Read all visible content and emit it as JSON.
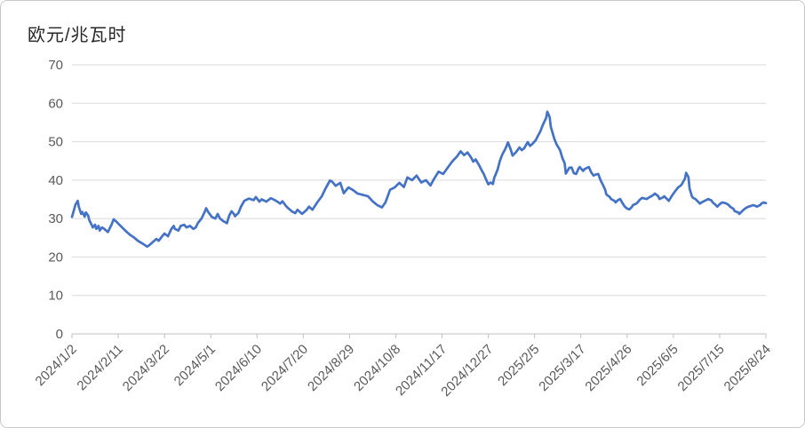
{
  "chart_data": {
    "type": "line",
    "title": "欧元/兆瓦时",
    "x_start_date": "2024/1/2",
    "x_end_date": "2025/8/24",
    "x_span_days": 600,
    "x_tick_interval_days": 40,
    "x_tick_labels": [
      "2024/1/2",
      "2024/2/11",
      "2024/3/22",
      "2024/5/1",
      "2024/6/10",
      "2024/7/20",
      "2024/8/29",
      "2024/10/8",
      "2024/11/17",
      "2024/12/27",
      "2025/2/5",
      "2025/3/17",
      "2025/4/26",
      "2025/6/5",
      "2025/7/15",
      "2025/8/24"
    ],
    "y_ticks": [
      0,
      10,
      20,
      30,
      40,
      50,
      60,
      70
    ],
    "ylim": [
      0,
      70
    ],
    "grid": "horizontal",
    "legend": "none",
    "colors": {
      "line": "#4472C4",
      "gridline": "#D9D9D9",
      "axis": "#BFBFBF",
      "tick_label": "#595959",
      "title": "#262626",
      "background": "#FFFFFF",
      "border": "#C9C9C9"
    },
    "series": [
      {
        "points_format": "[days_since_2024/1/2, EUR_per_MWh]",
        "points": [
          [
            0,
            30.4
          ],
          [
            2,
            32.5
          ],
          [
            3,
            33.6
          ],
          [
            5,
            34.6
          ],
          [
            6,
            33.0
          ],
          [
            8,
            31.2
          ],
          [
            9,
            31.7
          ],
          [
            11,
            30.5
          ],
          [
            12,
            31.6
          ],
          [
            14,
            30.8
          ],
          [
            15,
            29.6
          ],
          [
            17,
            28.4
          ],
          [
            18,
            27.7
          ],
          [
            20,
            28.4
          ],
          [
            21,
            27.3
          ],
          [
            23,
            28.1
          ],
          [
            24,
            26.9
          ],
          [
            26,
            27.7
          ],
          [
            28,
            27.3
          ],
          [
            31,
            26.5
          ],
          [
            34,
            28.3
          ],
          [
            36,
            29.8
          ],
          [
            38,
            29.3
          ],
          [
            42,
            28.1
          ],
          [
            46,
            26.9
          ],
          [
            50,
            25.8
          ],
          [
            54,
            25.0
          ],
          [
            57,
            24.2
          ],
          [
            61,
            23.5
          ],
          [
            65,
            22.7
          ],
          [
            67,
            23.1
          ],
          [
            70,
            23.9
          ],
          [
            73,
            24.7
          ],
          [
            75,
            24.2
          ],
          [
            78,
            25.4
          ],
          [
            80,
            26.1
          ],
          [
            83,
            25.4
          ],
          [
            86,
            27.3
          ],
          [
            88,
            28.1
          ],
          [
            89,
            27.3
          ],
          [
            92,
            26.9
          ],
          [
            94,
            28.1
          ],
          [
            97,
            28.4
          ],
          [
            99,
            27.7
          ],
          [
            102,
            28.1
          ],
          [
            105,
            27.3
          ],
          [
            107,
            27.7
          ],
          [
            109,
            28.9
          ],
          [
            112,
            30.0
          ],
          [
            115,
            31.9
          ],
          [
            116,
            32.7
          ],
          [
            118,
            31.6
          ],
          [
            121,
            30.4
          ],
          [
            124,
            30.0
          ],
          [
            126,
            31.2
          ],
          [
            128,
            30.0
          ],
          [
            131,
            29.3
          ],
          [
            134,
            28.8
          ],
          [
            136,
            30.8
          ],
          [
            138,
            31.9
          ],
          [
            140,
            31.2
          ],
          [
            141,
            30.6
          ],
          [
            144,
            31.5
          ],
          [
            146,
            33.0
          ],
          [
            149,
            34.6
          ],
          [
            153,
            35.2
          ],
          [
            157,
            34.8
          ],
          [
            159,
            35.6
          ],
          [
            162,
            34.4
          ],
          [
            164,
            35.0
          ],
          [
            168,
            34.4
          ],
          [
            172,
            35.3
          ],
          [
            176,
            34.7
          ],
          [
            180,
            33.9
          ],
          [
            182,
            34.5
          ],
          [
            185,
            33.3
          ],
          [
            187,
            32.7
          ],
          [
            190,
            31.9
          ],
          [
            193,
            31.4
          ],
          [
            195,
            32.3
          ],
          [
            199,
            31.2
          ],
          [
            203,
            32.3
          ],
          [
            205,
            33.1
          ],
          [
            208,
            32.3
          ],
          [
            212,
            34.2
          ],
          [
            216,
            35.8
          ],
          [
            219,
            37.7
          ],
          [
            223,
            39.9
          ],
          [
            225,
            39.6
          ],
          [
            228,
            38.5
          ],
          [
            232,
            39.3
          ],
          [
            235,
            36.6
          ],
          [
            239,
            38.1
          ],
          [
            243,
            37.4
          ],
          [
            247,
            36.5
          ],
          [
            251,
            36.2
          ],
          [
            256,
            35.8
          ],
          [
            260,
            34.5
          ],
          [
            264,
            33.5
          ],
          [
            268,
            32.9
          ],
          [
            271,
            34.2
          ],
          [
            275,
            37.5
          ],
          [
            279,
            38.1
          ],
          [
            283,
            39.3
          ],
          [
            287,
            38.2
          ],
          [
            290,
            40.7
          ],
          [
            294,
            40.0
          ],
          [
            298,
            41.2
          ],
          [
            302,
            39.4
          ],
          [
            306,
            40.0
          ],
          [
            310,
            38.6
          ],
          [
            313,
            40.3
          ],
          [
            317,
            42.2
          ],
          [
            321,
            41.6
          ],
          [
            325,
            43.3
          ],
          [
            329,
            44.9
          ],
          [
            333,
            46.2
          ],
          [
            336,
            47.5
          ],
          [
            339,
            46.5
          ],
          [
            342,
            47.2
          ],
          [
            345,
            45.9
          ],
          [
            347,
            44.8
          ],
          [
            349,
            45.4
          ],
          [
            352,
            43.9
          ],
          [
            354,
            42.7
          ],
          [
            356,
            41.6
          ],
          [
            358,
            40.2
          ],
          [
            360,
            38.9
          ],
          [
            362,
            39.4
          ],
          [
            364,
            39.0
          ],
          [
            365,
            40.5
          ],
          [
            368,
            42.7
          ],
          [
            370,
            45.0
          ],
          [
            372,
            46.6
          ],
          [
            375,
            48.3
          ],
          [
            377,
            49.8
          ],
          [
            379,
            48.3
          ],
          [
            381,
            46.4
          ],
          [
            384,
            47.3
          ],
          [
            387,
            48.5
          ],
          [
            389,
            47.8
          ],
          [
            391,
            48.3
          ],
          [
            394,
            49.9
          ],
          [
            396,
            48.9
          ],
          [
            398,
            49.4
          ],
          [
            401,
            50.4
          ],
          [
            403,
            51.6
          ],
          [
            405,
            52.7
          ],
          [
            407,
            54.3
          ],
          [
            410,
            56.2
          ],
          [
            411,
            57.8
          ],
          [
            413,
            56.4
          ],
          [
            414,
            53.9
          ],
          [
            417,
            50.8
          ],
          [
            419,
            49.3
          ],
          [
            422,
            47.8
          ],
          [
            424,
            45.8
          ],
          [
            426,
            44.4
          ],
          [
            427,
            41.7
          ],
          [
            430,
            43.2
          ],
          [
            432,
            43.3
          ],
          [
            434,
            41.8
          ],
          [
            436,
            41.6
          ],
          [
            438,
            43.0
          ],
          [
            439,
            43.4
          ],
          [
            442,
            42.4
          ],
          [
            443,
            42.8
          ],
          [
            446,
            43.3
          ],
          [
            447,
            43.4
          ],
          [
            449,
            42.0
          ],
          [
            451,
            41.2
          ],
          [
            453,
            41.5
          ],
          [
            455,
            41.6
          ],
          [
            457,
            40.0
          ],
          [
            459,
            38.8
          ],
          [
            461,
            37.5
          ],
          [
            462,
            36.3
          ],
          [
            465,
            35.6
          ],
          [
            466,
            35.1
          ],
          [
            469,
            34.6
          ],
          [
            470,
            34.2
          ],
          [
            472,
            34.8
          ],
          [
            474,
            35.1
          ],
          [
            476,
            34.0
          ],
          [
            478,
            33.1
          ],
          [
            480,
            32.6
          ],
          [
            482,
            32.4
          ],
          [
            484,
            33.0
          ],
          [
            485,
            33.5
          ],
          [
            488,
            33.9
          ],
          [
            489,
            34.2
          ],
          [
            491,
            34.9
          ],
          [
            493,
            35.4
          ],
          [
            495,
            35.2
          ],
          [
            497,
            35.1
          ],
          [
            499,
            35.5
          ],
          [
            501,
            35.8
          ],
          [
            503,
            36.2
          ],
          [
            504,
            36.5
          ],
          [
            507,
            35.8
          ],
          [
            508,
            35.1
          ],
          [
            511,
            35.5
          ],
          [
            512,
            35.8
          ],
          [
            514,
            35.2
          ],
          [
            516,
            34.6
          ],
          [
            518,
            35.6
          ],
          [
            520,
            36.5
          ],
          [
            522,
            37.3
          ],
          [
            524,
            38.1
          ],
          [
            526,
            38.5
          ],
          [
            527,
            38.8
          ],
          [
            530,
            40.4
          ],
          [
            531,
            41.9
          ],
          [
            533,
            40.8
          ],
          [
            534,
            37.8
          ],
          [
            536,
            35.8
          ],
          [
            537,
            35.4
          ],
          [
            539,
            35.1
          ],
          [
            541,
            34.5
          ],
          [
            543,
            33.9
          ],
          [
            545,
            34.3
          ],
          [
            547,
            34.6
          ],
          [
            549,
            34.9
          ],
          [
            550,
            35.1
          ],
          [
            553,
            34.7
          ],
          [
            554,
            34.2
          ],
          [
            556,
            33.7
          ],
          [
            558,
            33.1
          ],
          [
            560,
            33.7
          ],
          [
            562,
            34.2
          ],
          [
            564,
            34.1
          ],
          [
            566,
            33.9
          ],
          [
            568,
            33.5
          ],
          [
            569,
            33.1
          ],
          [
            572,
            32.5
          ],
          [
            573,
            31.9
          ],
          [
            576,
            31.6
          ],
          [
            577,
            31.2
          ],
          [
            579,
            31.8
          ],
          [
            581,
            32.4
          ],
          [
            583,
            32.8
          ],
          [
            585,
            33.1
          ],
          [
            587,
            33.3
          ],
          [
            589,
            33.5
          ],
          [
            591,
            33.3
          ],
          [
            592,
            33.1
          ],
          [
            595,
            33.5
          ],
          [
            596,
            33.9
          ],
          [
            598,
            34.2
          ],
          [
            600,
            34.0
          ]
        ]
      }
    ]
  }
}
